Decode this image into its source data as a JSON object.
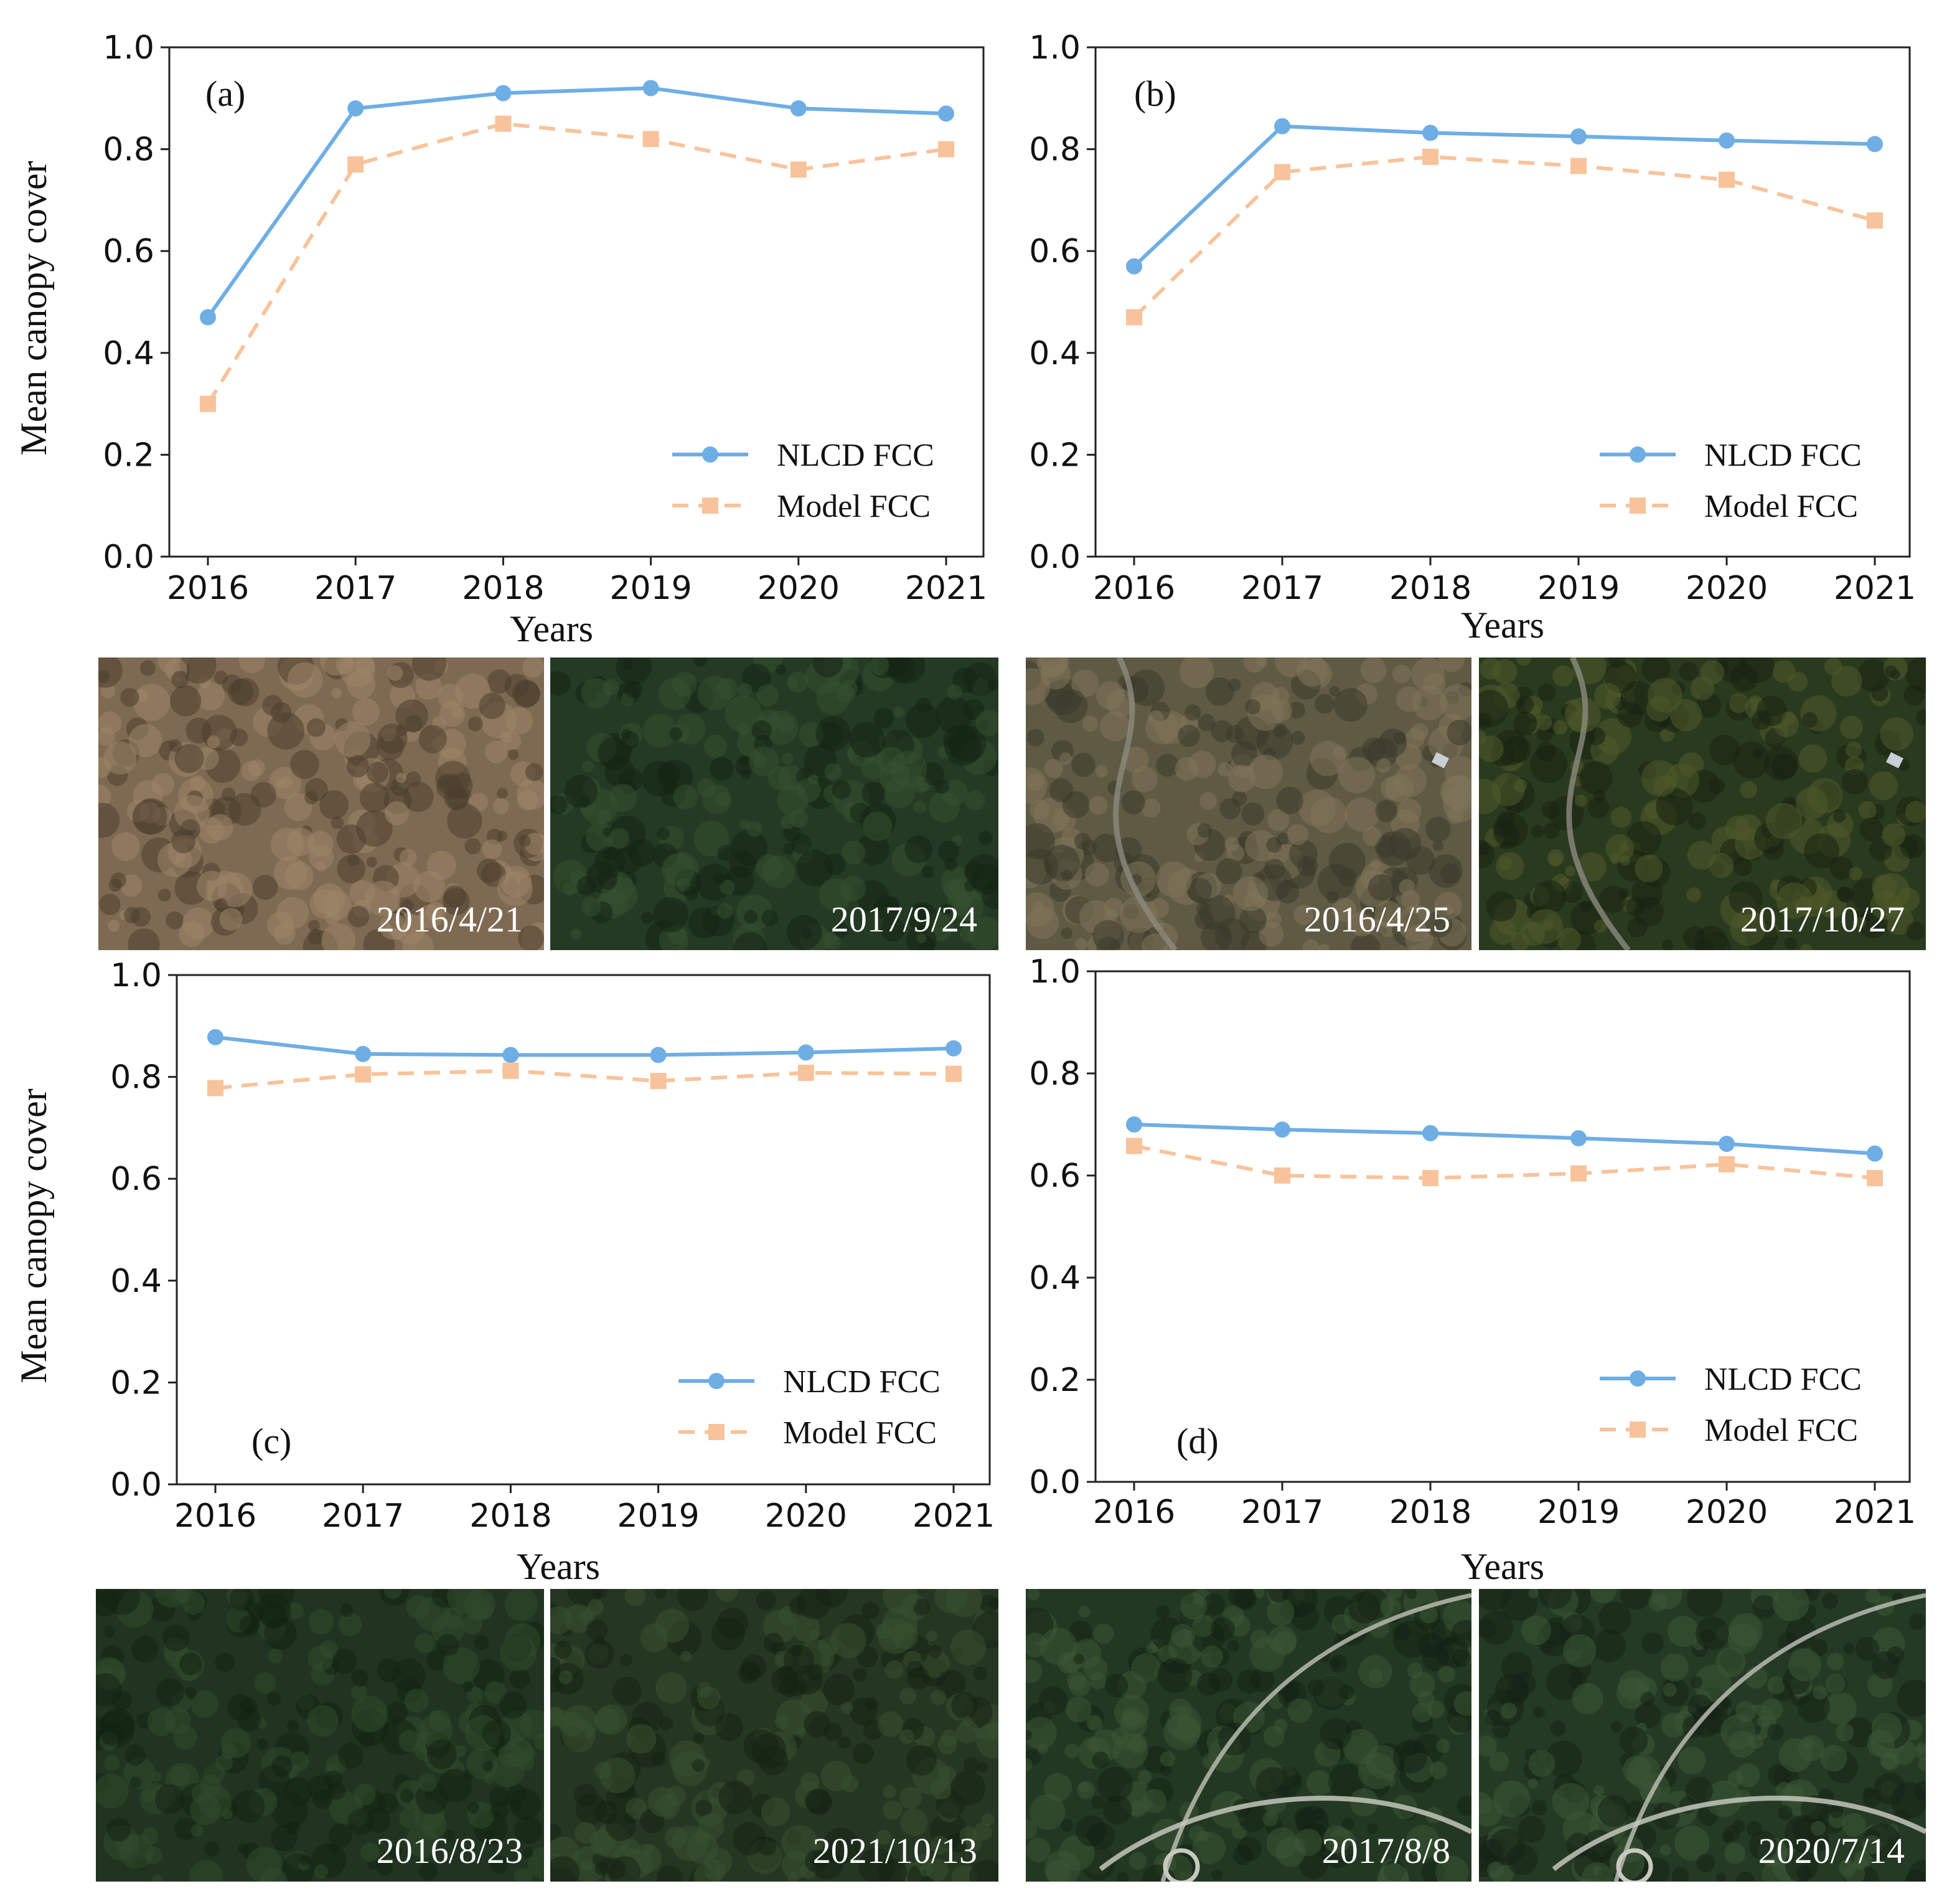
{
  "figure": {
    "series_styles": [
      {
        "name": "NLCD FCC",
        "color": "#6eaee4",
        "marker": "circle",
        "dash": "solid"
      },
      {
        "name": "Model FCC",
        "color": "#f8c39b",
        "marker": "square",
        "dash": "dashed"
      }
    ],
    "image_strips": [
      {
        "panel": "a",
        "photos": [
          {
            "date": "2016/4/21",
            "scene": "dry brown shrub and sparse trees, few dark green patches",
            "base": "#7e6a52",
            "dark": "#4d3e2e",
            "light": "#9c8568"
          },
          {
            "date": "2017/9/24",
            "scene": "dense dark green forest canopy",
            "base": "#243a24",
            "dark": "#142414",
            "light": "#35502f"
          }
        ]
      },
      {
        "panel": "b",
        "photos": [
          {
            "date": "2016/4/25",
            "scene": "leafless brown forest with a road and houses",
            "base": "#5f5a44",
            "dark": "#3a3a2c",
            "light": "#7f7559"
          },
          {
            "date": "2017/10/27",
            "scene": "leaf-on green and autumn forest with a road and houses",
            "base": "#2a3a1e",
            "dark": "#172312",
            "light": "#4f5a2a"
          }
        ]
      },
      {
        "panel": "c",
        "photos": [
          {
            "date": "2016/8/23",
            "scene": "dense dark green forest canopy",
            "base": "#213421",
            "dark": "#132213",
            "light": "#314b2e"
          },
          {
            "date": "2021/10/13",
            "scene": "dense dark green forest canopy",
            "base": "#253722",
            "dark": "#152314",
            "light": "#39502f"
          }
        ]
      },
      {
        "panel": "d",
        "photos": [
          {
            "date": "2017/8/8",
            "scene": "green forest with curved road and roundabout",
            "base": "#233823",
            "dark": "#142214",
            "light": "#3a5535"
          },
          {
            "date": "2020/7/14",
            "scene": "green forest with curved road and roundabout",
            "base": "#243a24",
            "dark": "#152315",
            "light": "#3b5736"
          }
        ]
      }
    ]
  },
  "chart_data": [
    {
      "type": "line",
      "panel_label": "(a)",
      "title": "",
      "xlabel": "Years",
      "ylabel": "Mean canopy cover",
      "x": [
        2016,
        2017,
        2018,
        2019,
        2020,
        2021
      ],
      "x_tick_labels": [
        "2016",
        "2017",
        "2018",
        "2019",
        "2020",
        "2021"
      ],
      "y_tick_labels": [
        "0.0",
        "0.2",
        "0.4",
        "0.6",
        "0.8",
        "1.0"
      ],
      "ylim": [
        0.0,
        1.0
      ],
      "grid": false,
      "legend_location": "lower-right",
      "series": [
        {
          "name": "NLCD FCC",
          "values": [
            0.47,
            0.88,
            0.91,
            0.92,
            0.88,
            0.87
          ]
        },
        {
          "name": "Model FCC",
          "values": [
            0.3,
            0.77,
            0.85,
            0.82,
            0.76,
            0.8
          ]
        }
      ]
    },
    {
      "type": "line",
      "panel_label": "(b)",
      "title": "",
      "xlabel": "Years",
      "ylabel": "",
      "x": [
        2016,
        2017,
        2018,
        2019,
        2020,
        2021
      ],
      "x_tick_labels": [
        "2016",
        "2017",
        "2018",
        "2019",
        "2020",
        "2021"
      ],
      "y_tick_labels": [
        "0.0",
        "0.2",
        "0.4",
        "0.6",
        "0.8",
        "1.0"
      ],
      "ylim": [
        0.0,
        1.0
      ],
      "grid": false,
      "legend_location": "lower-right",
      "series": [
        {
          "name": "NLCD FCC",
          "values": [
            0.57,
            0.845,
            0.832,
            0.825,
            0.817,
            0.81
          ]
        },
        {
          "name": "Model FCC",
          "values": [
            0.47,
            0.755,
            0.785,
            0.767,
            0.74,
            0.66
          ]
        }
      ]
    },
    {
      "type": "line",
      "panel_label": "(c)",
      "title": "",
      "xlabel": "Years",
      "ylabel": "Mean canopy cover",
      "x": [
        2016,
        2017,
        2018,
        2019,
        2020,
        2021
      ],
      "x_tick_labels": [
        "2016",
        "2017",
        "2018",
        "2019",
        "2020",
        "2021"
      ],
      "y_tick_labels": [
        "0.0",
        "0.2",
        "0.4",
        "0.6",
        "0.8",
        "1.0"
      ],
      "ylim": [
        0.0,
        1.0
      ],
      "grid": false,
      "legend_location": "lower-right",
      "series": [
        {
          "name": "NLCD FCC",
          "values": [
            0.878,
            0.845,
            0.843,
            0.843,
            0.848,
            0.856
          ]
        },
        {
          "name": "Model FCC",
          "values": [
            0.778,
            0.805,
            0.812,
            0.792,
            0.808,
            0.806
          ]
        }
      ]
    },
    {
      "type": "line",
      "panel_label": "(d)",
      "title": "",
      "xlabel": "Years",
      "ylabel": "",
      "x": [
        2016,
        2017,
        2018,
        2019,
        2020,
        2021
      ],
      "x_tick_labels": [
        "2016",
        "2017",
        "2018",
        "2019",
        "2020",
        "2021"
      ],
      "y_tick_labels": [
        "0.0",
        "0.2",
        "0.4",
        "0.6",
        "0.8",
        "1.0"
      ],
      "ylim": [
        0.0,
        1.0
      ],
      "grid": false,
      "legend_location": "lower-right",
      "series": [
        {
          "name": "NLCD FCC",
          "values": [
            0.7,
            0.69,
            0.683,
            0.673,
            0.662,
            0.643
          ]
        },
        {
          "name": "Model FCC",
          "values": [
            0.658,
            0.6,
            0.595,
            0.604,
            0.622,
            0.595
          ]
        }
      ]
    }
  ]
}
